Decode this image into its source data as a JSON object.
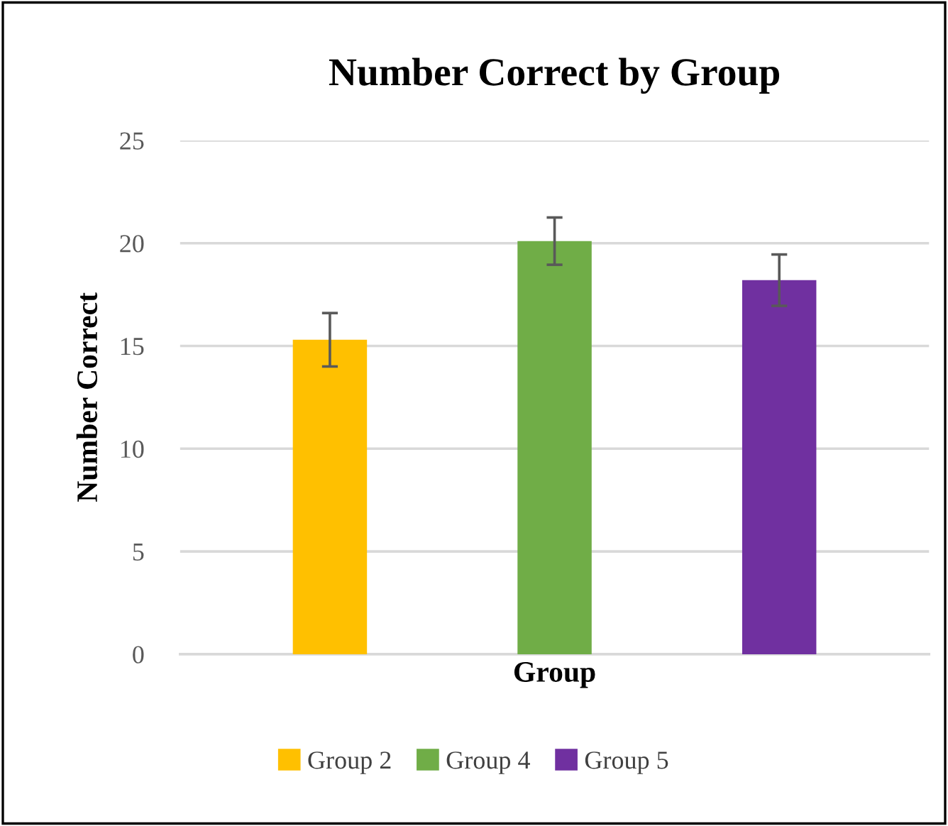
{
  "chart_data": {
    "type": "bar",
    "title": "Number Correct by Group",
    "xlabel": "Group",
    "ylabel": "Number Correct",
    "categories": [
      null
    ],
    "series": [
      {
        "name": "Group 2",
        "color": "#ffc000",
        "values": [
          15.3
        ],
        "errors": [
          1.3
        ]
      },
      {
        "name": "Group 4",
        "color": "#70ad47",
        "values": [
          20.1
        ],
        "errors": [
          1.15
        ]
      },
      {
        "name": "Group 5",
        "color": "#7030a0",
        "values": [
          18.2
        ],
        "errors": [
          1.25
        ]
      }
    ],
    "ylim": [
      0,
      25
    ],
    "yticks": [
      0,
      5,
      10,
      15,
      20,
      25
    ],
    "grid": "y",
    "legend": "bottom"
  }
}
